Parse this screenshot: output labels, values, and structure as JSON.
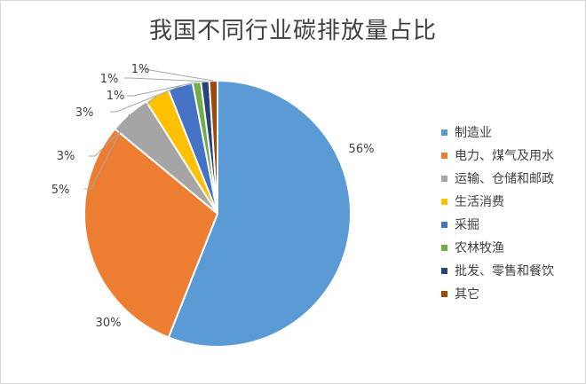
{
  "chart_data": {
    "type": "pie",
    "title": "我国不同行业碳排放量占比",
    "slices": [
      {
        "label": "制造业",
        "value": 56,
        "value_label": "56%",
        "color": "#5b9bd5"
      },
      {
        "label": "电力、煤气及用水",
        "value": 30,
        "value_label": "30%",
        "color": "#ed7d31"
      },
      {
        "label": "运输、仓储和邮政",
        "value": 5,
        "value_label": "5%",
        "color": "#a5a5a5"
      },
      {
        "label": "生活消费",
        "value": 3,
        "value_label": "3%",
        "color": "#ffc000"
      },
      {
        "label": "采掘",
        "value": 3,
        "value_label": "3%",
        "color": "#4472c4"
      },
      {
        "label": "农林牧渔",
        "value": 1,
        "value_label": "1%",
        "color": "#70ad47"
      },
      {
        "label": "批发、零售和餐饮",
        "value": 1,
        "value_label": "1%",
        "color": "#264478"
      },
      {
        "label": "其它",
        "value": 1,
        "value_label": "1%",
        "color": "#9e480e"
      }
    ],
    "start_angle": "12 o'clock",
    "direction": "clockwise",
    "legend_position": "right"
  }
}
